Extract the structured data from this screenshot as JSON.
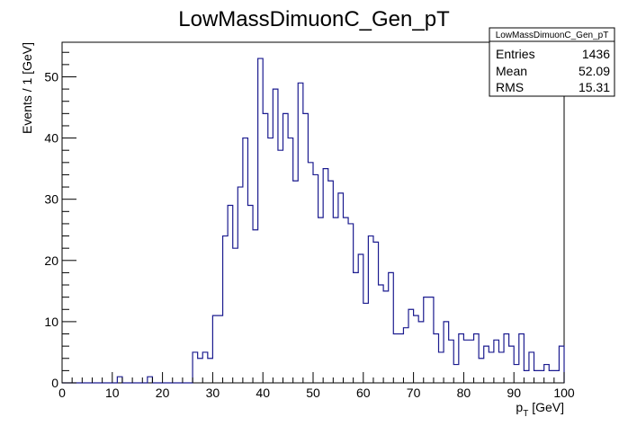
{
  "chart_data": {
    "type": "bar",
    "title": "LowMassDimuonC_Gen_pT",
    "xlabel": "p_T [GeV]",
    "xlabel_main": "p",
    "xlabel_sub": "T",
    "xlabel_unit": " [GeV]",
    "ylabel": "Events / 1 [GeV]",
    "xlim": [
      0,
      100
    ],
    "ylim": [
      0,
      55.65
    ],
    "x_ticks": [
      0,
      10,
      20,
      30,
      40,
      50,
      60,
      70,
      80,
      90,
      100
    ],
    "y_ticks": [
      0,
      10,
      20,
      30,
      40,
      50
    ],
    "bin_width": 1,
    "values": [
      0,
      0,
      0,
      0,
      0,
      0,
      0,
      0,
      0,
      0,
      0,
      1,
      0,
      0,
      0,
      0,
      0,
      1,
      0,
      0,
      0,
      0,
      0,
      0,
      0,
      0,
      5,
      4,
      5,
      4,
      11,
      11,
      24,
      29,
      22,
      32,
      40,
      29,
      25,
      53,
      44,
      40,
      48,
      38,
      44,
      40,
      33,
      49,
      44,
      36,
      34,
      27,
      35,
      33,
      27,
      31,
      27,
      26,
      18,
      21,
      13,
      24,
      23,
      16,
      15,
      18,
      8,
      8,
      9,
      12,
      11,
      10,
      14,
      14,
      8,
      5,
      10,
      7,
      3,
      8,
      7,
      7,
      8,
      4,
      6,
      5,
      7,
      5,
      8,
      6,
      3,
      8,
      2,
      5,
      2,
      2,
      3,
      2,
      2,
      6
    ],
    "stats": {
      "title": "LowMassDimuonC_Gen_pT",
      "rows": [
        {
          "label": "Entries",
          "value": "1436"
        },
        {
          "label": "Mean",
          "value": "52.09"
        },
        {
          "label": "RMS",
          "value": "15.31"
        }
      ]
    },
    "grid": false,
    "line_color": "#1b1b8f"
  }
}
